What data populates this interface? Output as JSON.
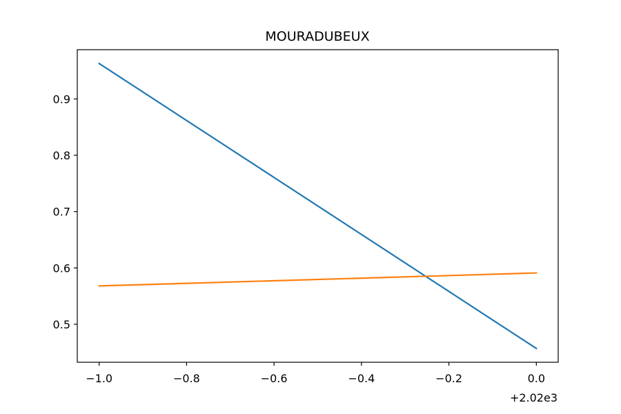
{
  "chart_data": {
    "type": "line",
    "title": "MOURADUBEUX",
    "xlabel": "",
    "ylabel": "",
    "x_offset_label": "+2.02e3",
    "xlim": [
      -1.05,
      0.05
    ],
    "ylim": [
      0.4325,
      0.9875
    ],
    "x_ticks": [
      -1.0,
      -0.8,
      -0.6,
      -0.4,
      -0.2,
      0.0
    ],
    "x_tick_labels": [
      "−1.0",
      "−0.8",
      "−0.6",
      "−0.4",
      "−0.2",
      "0.0"
    ],
    "y_ticks": [
      0.5,
      0.6,
      0.7,
      0.8,
      0.9
    ],
    "y_tick_labels": [
      "0.5",
      "0.6",
      "0.7",
      "0.8",
      "0.9"
    ],
    "grid": false,
    "series": [
      {
        "color": "#1f77b4",
        "x": [
          -1.0,
          0.0
        ],
        "y": [
          0.963,
          0.457
        ]
      },
      {
        "color": "#ff7f0e",
        "x": [
          -1.0,
          0.0
        ],
        "y": [
          0.568,
          0.591
        ]
      }
    ]
  }
}
